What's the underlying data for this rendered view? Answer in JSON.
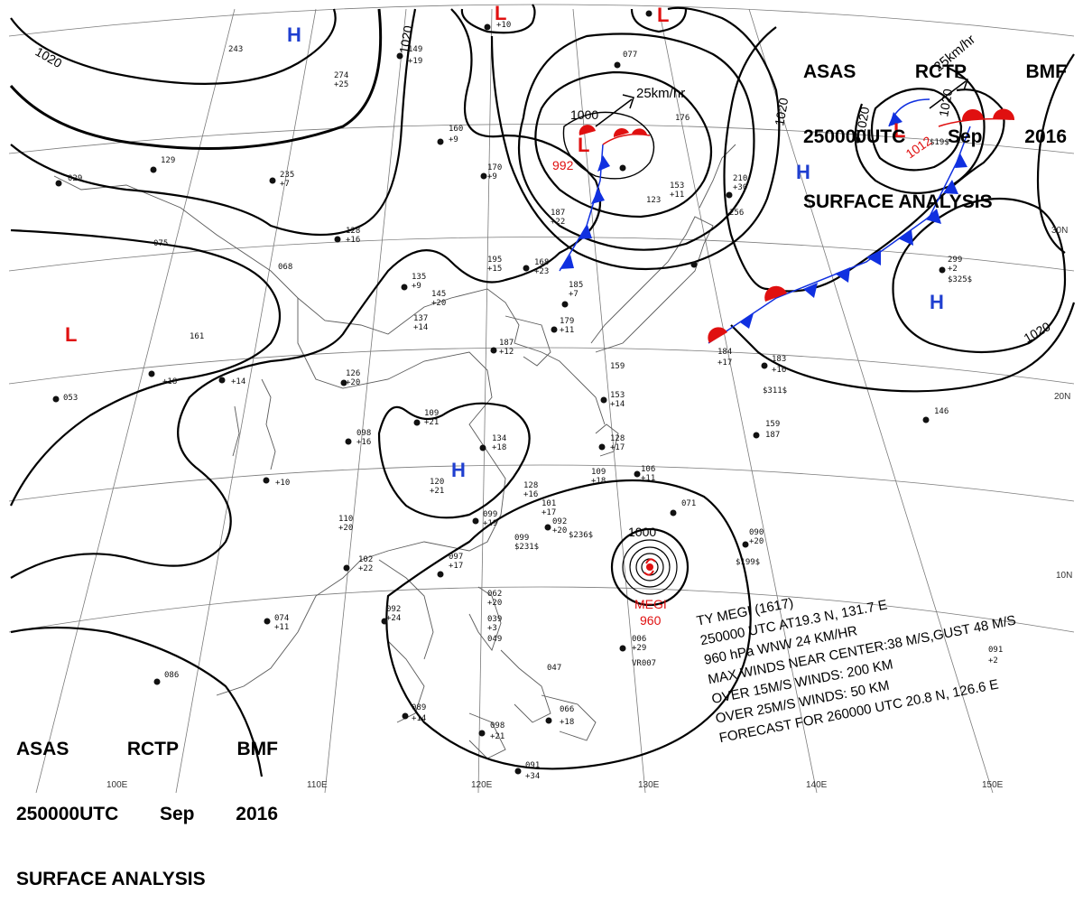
{
  "header": {
    "agency_line": [
      "ASAS",
      "RCTP",
      "BMF"
    ],
    "time_line": [
      "250000UTC",
      "Sep",
      "2016"
    ],
    "title": "SURFACE ANALYSIS"
  },
  "typhoon": {
    "name_line": "TY  MEGI  (1617)",
    "position_line": "250000 UTC  AT19.3 N, 131.7 E",
    "pressure_line": "960 hPa  WNW  24 KM/HR",
    "max_wind_line": "MAX WINDS NEAR CENTER:38 M/S,GUST 48 M/S",
    "over15_line": "OVER 15M/S WINDS: 200 KM",
    "over25_line": "OVER 25M/S WINDS: 50 KM",
    "forecast_line": "FORECAST FOR 260000 UTC 20.8 N, 126.6 E",
    "map_label": "MEGI",
    "map_pressure": "960"
  },
  "motion_label": "25km/hr",
  "motion_label_2": "25km/hr",
  "pressure_centers": [
    {
      "type": "H",
      "value": ""
    },
    {
      "type": "H",
      "value": ""
    },
    {
      "type": "H",
      "value": ""
    },
    {
      "type": "H",
      "value": ""
    },
    {
      "type": "L",
      "value": ""
    },
    {
      "type": "L",
      "value": "992"
    },
    {
      "type": "L",
      "value": "1012"
    },
    {
      "type": "L",
      "value": ""
    },
    {
      "type": "L",
      "value": ""
    }
  ],
  "isobar_labels": [
    "1020",
    "1020",
    "1000",
    "1020",
    "1020",
    "1020",
    "1000",
    "1020",
    "1012"
  ],
  "lat_labels": [
    "30N",
    "20N",
    "10N"
  ],
  "lon_labels": [
    "100E",
    "110E",
    "120E",
    "130E",
    "140E",
    "150E"
  ],
  "colors": {
    "high": "#1f3fd0",
    "low": "#e01010",
    "cold_front": "#1030e0",
    "warm_front": "#e01010",
    "isobar": "#000000",
    "coast": "#606060",
    "grid": "#707070"
  }
}
